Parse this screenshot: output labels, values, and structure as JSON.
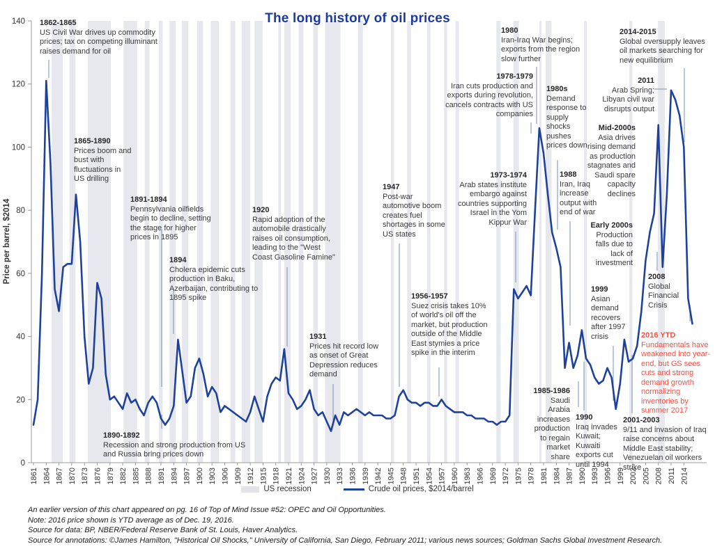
{
  "title": "The long history of oil prices",
  "colors": {
    "line_blue": "#1e429b",
    "title_blue": "#1b3aa0",
    "annotation_red": "#f75045",
    "recession_gray": "#e7e8ee",
    "leader": "#8e9fc4",
    "axis": "#9b9b9b",
    "text": "#333333"
  },
  "chart_data": {
    "type": "line",
    "title": "The long history of oil prices",
    "xlabel": "",
    "ylabel": "Price per barrel, $2014",
    "ylim": [
      0,
      140
    ],
    "y_ticks": [
      0,
      20,
      40,
      60,
      80,
      100,
      120,
      140
    ],
    "x_ticks": [
      1861,
      1864,
      1867,
      1870,
      1873,
      1876,
      1879,
      1882,
      1885,
      1888,
      1891,
      1894,
      1897,
      1900,
      1903,
      1906,
      1909,
      1912,
      1915,
      1918,
      1921,
      1924,
      1927,
      1930,
      1933,
      1936,
      1939,
      1942,
      1945,
      1948,
      1951,
      1954,
      1957,
      1960,
      1963,
      1966,
      1969,
      1972,
      1975,
      1978,
      1981,
      1984,
      1987,
      1990,
      1993,
      1996,
      1999,
      2002,
      2005,
      2008,
      2011,
      2014
    ],
    "x_start": 1861,
    "grid": false,
    "legend_position": "bottom",
    "series": [
      {
        "name": "Crude oil prices, $2014/barrel",
        "values": [
          12,
          20,
          60,
          121,
          95,
          55,
          48,
          62,
          63,
          63,
          85,
          70,
          40,
          25,
          30,
          57,
          52,
          28,
          20,
          21,
          19,
          17,
          22,
          19,
          20,
          17,
          15,
          19,
          21,
          19,
          14,
          12,
          14,
          18,
          39,
          29,
          19,
          21,
          30,
          33,
          28,
          21,
          24,
          22,
          16,
          18,
          17,
          16,
          15,
          14,
          13,
          16,
          21,
          17,
          13,
          21,
          25,
          27,
          26,
          36,
          22,
          20,
          17,
          18,
          20,
          23,
          17,
          15,
          16,
          13,
          10,
          15,
          12,
          16,
          15,
          16,
          17,
          16,
          15,
          16,
          15,
          15,
          15,
          14,
          14,
          15,
          21,
          23,
          20,
          19,
          19,
          18,
          19,
          19,
          18,
          18,
          20,
          18,
          17,
          16,
          16,
          16,
          15,
          15,
          14,
          14,
          14,
          13,
          13,
          12,
          13,
          13,
          15,
          55,
          52,
          54,
          56,
          53,
          80,
          106,
          98,
          85,
          73,
          68,
          62,
          30,
          38,
          30,
          34,
          42,
          33,
          31,
          27,
          25,
          26,
          30,
          27,
          17,
          25,
          39,
          32,
          33,
          37,
          48,
          64,
          73,
          79,
          107,
          62,
          85,
          118,
          115,
          110,
          100,
          52,
          44
        ]
      }
    ],
    "recessions": [
      [
        1865.3,
        1867.9
      ],
      [
        1869.5,
        1870.9
      ],
      [
        1873.8,
        1879.2
      ],
      [
        1882.2,
        1885.4
      ],
      [
        1887.2,
        1888.3
      ],
      [
        1890.5,
        1891.4
      ],
      [
        1893.0,
        1894.5
      ],
      [
        1895.9,
        1897.4
      ],
      [
        1899.5,
        1900.9
      ],
      [
        1902.7,
        1904.6
      ],
      [
        1907.4,
        1908.5
      ],
      [
        1910.0,
        1912.0
      ],
      [
        1913.0,
        1914.9
      ],
      [
        1918.6,
        1919.2
      ],
      [
        1920.0,
        1921.5
      ],
      [
        1923.4,
        1924.5
      ],
      [
        1926.8,
        1927.9
      ],
      [
        1929.6,
        1933.2
      ],
      [
        1937.4,
        1938.5
      ],
      [
        1945.1,
        1945.8
      ],
      [
        1948.9,
        1949.8
      ],
      [
        1953.6,
        1954.4
      ],
      [
        1957.6,
        1958.3
      ],
      [
        1960.3,
        1961.1
      ],
      [
        1969.9,
        1970.9
      ],
      [
        1973.9,
        1975.2
      ],
      [
        1980.0,
        1980.5
      ],
      [
        1981.5,
        1982.9
      ],
      [
        1990.5,
        1991.2
      ],
      [
        2001.2,
        2001.9
      ],
      [
        2007.9,
        2009.5
      ]
    ],
    "legend": [
      {
        "label": "US recession",
        "type": "area",
        "color": "#e3e4ea"
      },
      {
        "label": "Crude oil prices, $2014/barrel",
        "type": "line",
        "color": "#1e429b"
      }
    ]
  },
  "annotations": [
    {
      "date": "1862-1865",
      "text": "US Civil War drives up commodity prices; tax on competing illuminant raises demand for oil"
    },
    {
      "date": "1865-1890",
      "text": "Prices boom and bust with fluctuations in US drilling"
    },
    {
      "date": "1891-1894",
      "text": "Pennsylvania oilfields begin to decline, setting the stage for higher prices in 1895"
    },
    {
      "date": "1894",
      "text": "Cholera epidemic cuts production in Baku, Azerbaijan, contributing to 1895 spike"
    },
    {
      "date": "1890-1892",
      "text": "Recession and strong production from US and Russia bring prices down"
    },
    {
      "date": "1920",
      "text": "Rapid adoption of the automobile drastically raises oil consumption, leading to the \"West Coast Gasoline Famine\""
    },
    {
      "date": "1931",
      "text": "Prices hit record low as onset of Great Depression reduces demand"
    },
    {
      "date": "1947",
      "text": "Post-war automotive boom creates fuel shortages in some US states"
    },
    {
      "date": "1956-1957",
      "text": "Suez crisis takes 10% of world's oil off the market, but production outside of the Middle East stymies a price spike in the interim"
    },
    {
      "date": "1973-1974",
      "text": "Arab states institute embargo against countries supporting Israel in the Yom Kippur War"
    },
    {
      "date": "1978-1979",
      "text": "Iran cuts production and exports during revolution, cancels contracts with US companies"
    },
    {
      "date": "1980",
      "text": "Iran-Iraq War begins; exports from the region slow further"
    },
    {
      "date": "1980s",
      "text": "Demand response to supply shocks pushes prices down"
    },
    {
      "date": "1988",
      "text": "Iran, Iraq increase output with end of war"
    },
    {
      "date": "1985-1986",
      "text": "Saudi Arabia increases production to regain market share"
    },
    {
      "date": "1990",
      "text": "Iraq invades Kuwait; Kuwaiti exports cut until 1994"
    },
    {
      "date": "1999",
      "text": "Asian demand recovers after 1997 crisis"
    },
    {
      "date": "Early 2000s",
      "text": "Production falls due to lack of investment"
    },
    {
      "date": "Mid-2000s",
      "text": "Asia drives rising demand as production stagnates and Saudi spare capacity declines"
    },
    {
      "date": "2001-2003",
      "text": "9/11 and invasion of Iraq raise concerns about Middle East stability; Venezuelan oil workers strike"
    },
    {
      "date": "2008",
      "text": "Global Financial Crisis"
    },
    {
      "date": "2011",
      "text": "Arab Spring; Libyan civil war disrupts output"
    },
    {
      "date": "2014-2015",
      "text": "Global oversupply leaves oil markets searching for new equilibrium"
    },
    {
      "date": "2016 YTD",
      "text": "Fundamentals have weakened into year-end, but GS sees cuts and strong demand growth normalizing inventories by summer 2017",
      "color": "#f75045"
    }
  ],
  "footnotes": [
    "An earlier version of this chart appeared on pg. 16 of Top of Mind Issue #52: OPEC and Oil Opportunities.",
    "Note: 2016 price shown is YTD average as of Dec. 19, 2016.",
    "Source for data: BP, NBER/Federal Reserve Bank of St. Louis, Haver Analytics.",
    "Source for annotations: ©James Hamilton, \"Historical Oil Shocks,\" University of California, San Diego, February 2011; various news sources; Goldman Sachs Global Investment Research."
  ]
}
